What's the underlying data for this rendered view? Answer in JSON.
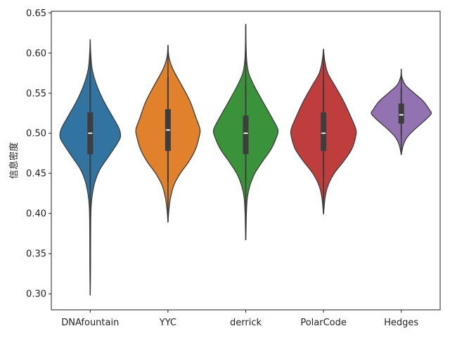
{
  "chart_data": {
    "type": "violin",
    "ylabel": "信息密度",
    "ylim": [
      0.28,
      0.652
    ],
    "yticks": [
      0.3,
      0.35,
      0.4,
      0.45,
      0.5,
      0.55,
      0.6,
      0.65
    ],
    "categories": [
      "DNAfountain",
      "YYC",
      "derrick",
      "PolarCode",
      "Hedges"
    ],
    "series": [
      {
        "category": "DNAfountain",
        "color": "#3274a1",
        "min": 0.298,
        "q1": 0.474,
        "median": 0.5,
        "q3": 0.526,
        "max": 0.617,
        "whisker_low": 0.435,
        "whisker_high": 0.565,
        "density": [
          [
            0.617,
            0.0
          ],
          [
            0.6,
            0.016
          ],
          [
            0.58,
            0.06
          ],
          [
            0.56,
            0.2
          ],
          [
            0.54,
            0.42
          ],
          [
            0.52,
            0.7
          ],
          [
            0.505,
            0.9
          ],
          [
            0.495,
            0.93
          ],
          [
            0.485,
            0.8
          ],
          [
            0.47,
            0.55
          ],
          [
            0.455,
            0.3
          ],
          [
            0.44,
            0.15
          ],
          [
            0.425,
            0.07
          ],
          [
            0.41,
            0.03
          ],
          [
            0.39,
            0.016
          ],
          [
            0.36,
            0.012
          ],
          [
            0.33,
            0.01
          ],
          [
            0.298,
            0.0
          ]
        ]
      },
      {
        "category": "YYC",
        "color": "#e1812c",
        "min": 0.389,
        "q1": 0.478,
        "median": 0.504,
        "q3": 0.53,
        "max": 0.61,
        "whisker_low": 0.44,
        "whisker_high": 0.57,
        "density": [
          [
            0.61,
            0.0
          ],
          [
            0.595,
            0.03
          ],
          [
            0.58,
            0.15
          ],
          [
            0.56,
            0.42
          ],
          [
            0.54,
            0.68
          ],
          [
            0.52,
            0.86
          ],
          [
            0.505,
            0.99
          ],
          [
            0.495,
            0.96
          ],
          [
            0.48,
            0.85
          ],
          [
            0.465,
            0.65
          ],
          [
            0.45,
            0.38
          ],
          [
            0.435,
            0.18
          ],
          [
            0.42,
            0.08
          ],
          [
            0.405,
            0.03
          ],
          [
            0.389,
            0.0
          ]
        ]
      },
      {
        "category": "derrick",
        "color": "#3a923a",
        "min": 0.367,
        "q1": 0.474,
        "median": 0.5,
        "q3": 0.522,
        "max": 0.636,
        "whisker_low": 0.44,
        "whisker_high": 0.56,
        "density": [
          [
            0.636,
            0.0
          ],
          [
            0.61,
            0.01
          ],
          [
            0.59,
            0.03
          ],
          [
            0.575,
            0.09
          ],
          [
            0.56,
            0.25
          ],
          [
            0.54,
            0.52
          ],
          [
            0.52,
            0.8
          ],
          [
            0.505,
            0.99
          ],
          [
            0.495,
            0.95
          ],
          [
            0.48,
            0.78
          ],
          [
            0.465,
            0.52
          ],
          [
            0.45,
            0.28
          ],
          [
            0.435,
            0.13
          ],
          [
            0.42,
            0.05
          ],
          [
            0.4,
            0.02
          ],
          [
            0.38,
            0.01
          ],
          [
            0.367,
            0.0
          ]
        ]
      },
      {
        "category": "PolarCode",
        "color": "#c03d3e",
        "min": 0.399,
        "q1": 0.478,
        "median": 0.5,
        "q3": 0.526,
        "max": 0.605,
        "whisker_low": 0.445,
        "whisker_high": 0.565,
        "density": [
          [
            0.605,
            0.0
          ],
          [
            0.59,
            0.04
          ],
          [
            0.575,
            0.13
          ],
          [
            0.56,
            0.34
          ],
          [
            0.54,
            0.62
          ],
          [
            0.52,
            0.85
          ],
          [
            0.505,
            1.0
          ],
          [
            0.495,
            0.99
          ],
          [
            0.48,
            0.87
          ],
          [
            0.465,
            0.62
          ],
          [
            0.45,
            0.33
          ],
          [
            0.435,
            0.14
          ],
          [
            0.42,
            0.05
          ],
          [
            0.399,
            0.0
          ]
        ]
      },
      {
        "category": "Hedges",
        "color": "#9372b2",
        "min": 0.473,
        "q1": 0.512,
        "median": 0.523,
        "q3": 0.537,
        "max": 0.58,
        "whisker_low": 0.497,
        "whisker_high": 0.556,
        "density": [
          [
            0.58,
            0.0
          ],
          [
            0.57,
            0.02
          ],
          [
            0.56,
            0.13
          ],
          [
            0.55,
            0.4
          ],
          [
            0.54,
            0.68
          ],
          [
            0.53,
            0.86
          ],
          [
            0.524,
            0.92
          ],
          [
            0.515,
            0.7
          ],
          [
            0.505,
            0.42
          ],
          [
            0.495,
            0.18
          ],
          [
            0.485,
            0.06
          ],
          [
            0.473,
            0.0
          ]
        ]
      }
    ]
  }
}
